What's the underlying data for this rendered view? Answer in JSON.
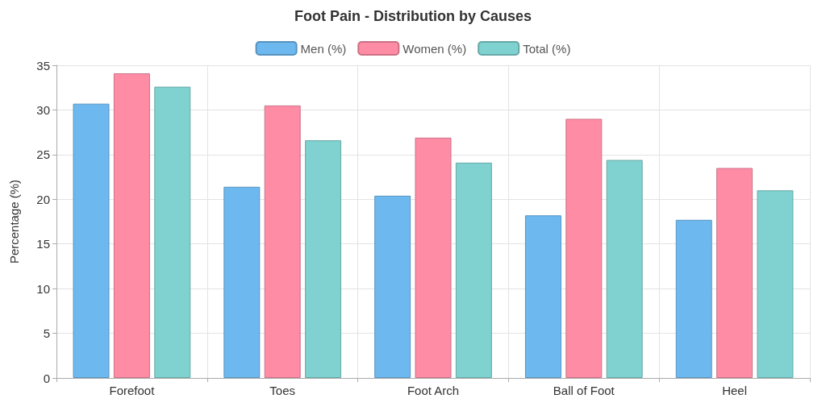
{
  "chart_data": {
    "type": "bar",
    "title": "Foot Pain - Distribution by Causes",
    "ylabel": "Percentage (%)",
    "categories": [
      "Forefoot",
      "Toes",
      "Foot Arch",
      "Ball of Foot",
      "Heel"
    ],
    "series": [
      {
        "name": "Men (%)",
        "color": "#6db8ef",
        "values": [
          30.7,
          21.4,
          20.4,
          18.2,
          17.7
        ]
      },
      {
        "name": "Women (%)",
        "color": "#ff8ca5",
        "values": [
          34.1,
          30.5,
          26.9,
          29.0,
          23.5
        ]
      },
      {
        "name": "Total (%)",
        "color": "#7fd2d0",
        "values": [
          32.6,
          26.6,
          24.1,
          24.4,
          21.0
        ]
      }
    ],
    "ylim": [
      0,
      35
    ],
    "yticks": [
      0,
      5,
      10,
      15,
      20,
      25,
      30,
      35
    ],
    "grid": true,
    "legend": "top"
  }
}
